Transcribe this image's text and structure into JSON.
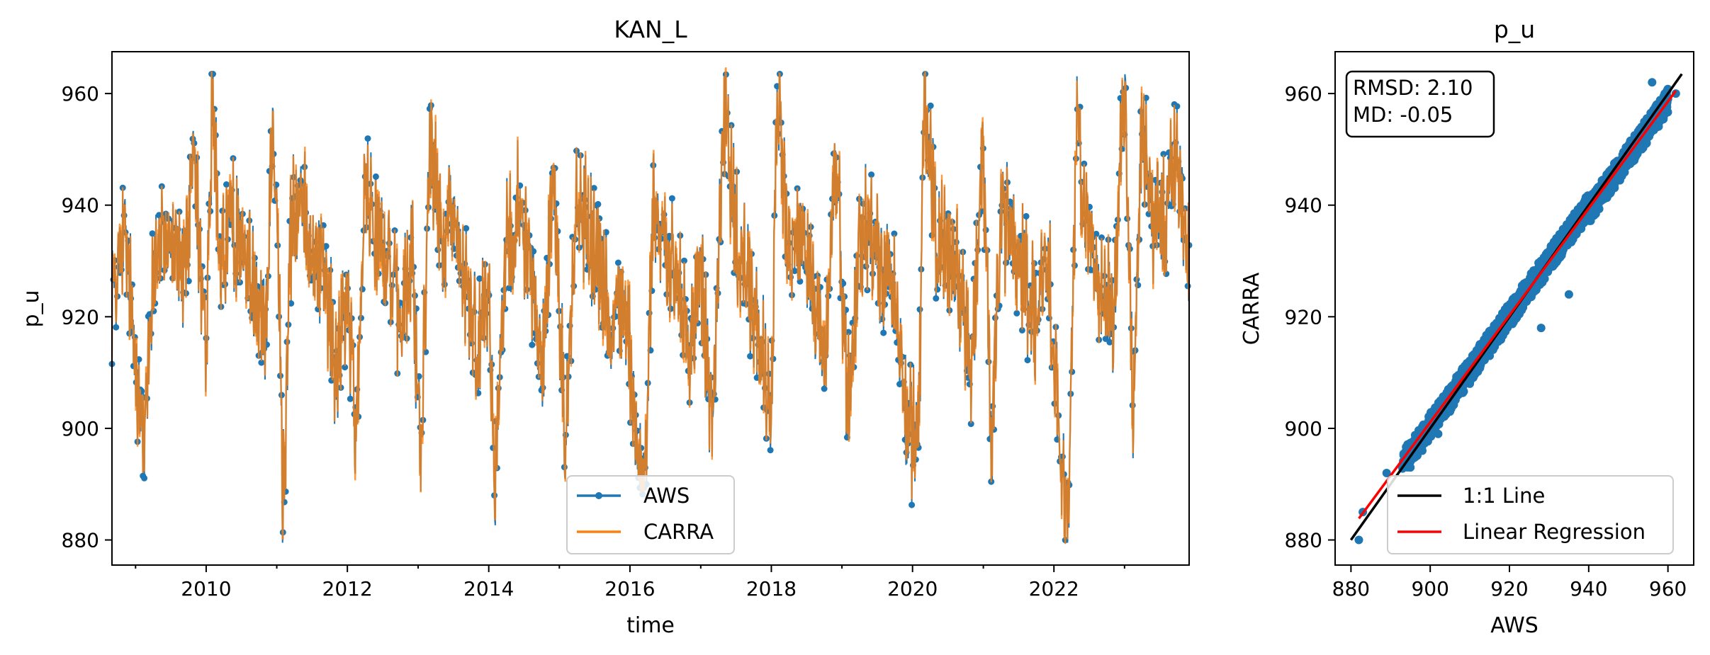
{
  "chart_data": [
    {
      "type": "line",
      "title": "KAN_L",
      "xlabel": "time",
      "ylabel": "p_u",
      "xlim": [
        "2008-09-01",
        "2023-12-01"
      ],
      "ylim": [
        875.5,
        967.5
      ],
      "xticks": [
        "2010",
        "2012",
        "2014",
        "2016",
        "2018",
        "2020",
        "2022"
      ],
      "yticks": [
        "880",
        "900",
        "920",
        "940",
        "960"
      ],
      "grid": false,
      "legend_position": "bottom-center",
      "series": [
        {
          "name": "AWS",
          "color": "#1f77b4",
          "marker": "circle"
        },
        {
          "name": "CARRA",
          "color": "#ff7f0e"
        }
      ],
      "points": [
        {
          "t": "2008-09-01",
          "v": 925
        },
        {
          "t": "2008-11-01",
          "v": 935
        },
        {
          "t": "2009-01-01",
          "v": 913
        },
        {
          "t": "2009-02-15",
          "v": 897
        },
        {
          "t": "2009-04-01",
          "v": 928
        },
        {
          "t": "2009-06-01",
          "v": 935
        },
        {
          "t": "2009-09-01",
          "v": 928
        },
        {
          "t": "2009-11-01",
          "v": 945
        },
        {
          "t": "2010-01-01",
          "v": 912
        },
        {
          "t": "2010-02-01",
          "v": 958
        },
        {
          "t": "2010-03-15",
          "v": 930
        },
        {
          "t": "2010-05-01",
          "v": 937
        },
        {
          "t": "2010-07-01",
          "v": 933
        },
        {
          "t": "2010-09-01",
          "v": 927
        },
        {
          "t": "2010-11-01",
          "v": 917
        },
        {
          "t": "2010-12-15",
          "v": 959
        },
        {
          "t": "2011-01-15",
          "v": 925
        },
        {
          "t": "2011-02-01",
          "v": 882
        },
        {
          "t": "2011-03-15",
          "v": 935
        },
        {
          "t": "2011-05-01",
          "v": 942
        },
        {
          "t": "2011-07-01",
          "v": 933
        },
        {
          "t": "2011-09-01",
          "v": 928
        },
        {
          "t": "2011-11-01",
          "v": 910
        },
        {
          "t": "2012-01-01",
          "v": 925
        },
        {
          "t": "2012-02-15",
          "v": 896
        },
        {
          "t": "2012-04-01",
          "v": 946
        },
        {
          "t": "2012-06-01",
          "v": 936
        },
        {
          "t": "2012-08-01",
          "v": 930
        },
        {
          "t": "2012-10-01",
          "v": 918
        },
        {
          "t": "2012-12-01",
          "v": 930
        },
        {
          "t": "2013-01-15",
          "v": 894
        },
        {
          "t": "2013-03-01",
          "v": 953
        },
        {
          "t": "2013-05-01",
          "v": 935
        },
        {
          "t": "2013-07-01",
          "v": 938
        },
        {
          "t": "2013-09-01",
          "v": 925
        },
        {
          "t": "2013-11-01",
          "v": 913
        },
        {
          "t": "2014-01-01",
          "v": 928
        },
        {
          "t": "2014-02-01",
          "v": 890
        },
        {
          "t": "2014-04-01",
          "v": 935
        },
        {
          "t": "2014-06-01",
          "v": 940
        },
        {
          "t": "2014-08-01",
          "v": 930
        },
        {
          "t": "2014-10-01",
          "v": 910
        },
        {
          "t": "2014-12-01",
          "v": 945
        },
        {
          "t": "2015-02-01",
          "v": 898
        },
        {
          "t": "2015-04-01",
          "v": 942
        },
        {
          "t": "2015-06-01",
          "v": 935
        },
        {
          "t": "2015-08-01",
          "v": 930
        },
        {
          "t": "2015-10-01",
          "v": 915
        },
        {
          "t": "2015-12-01",
          "v": 925
        },
        {
          "t": "2016-02-01",
          "v": 899
        },
        {
          "t": "2016-03-15",
          "v": 891
        },
        {
          "t": "2016-05-01",
          "v": 940
        },
        {
          "t": "2016-07-01",
          "v": 932
        },
        {
          "t": "2016-09-01",
          "v": 925
        },
        {
          "t": "2016-11-01",
          "v": 912
        },
        {
          "t": "2017-01-01",
          "v": 930
        },
        {
          "t": "2017-03-01",
          "v": 898
        },
        {
          "t": "2017-05-01",
          "v": 957
        },
        {
          "t": "2017-07-01",
          "v": 935
        },
        {
          "t": "2017-09-01",
          "v": 927
        },
        {
          "t": "2017-11-01",
          "v": 915
        },
        {
          "t": "2018-01-01",
          "v": 902
        },
        {
          "t": "2018-02-01",
          "v": 961
        },
        {
          "t": "2018-04-01",
          "v": 930
        },
        {
          "t": "2018-06-01",
          "v": 935
        },
        {
          "t": "2018-08-01",
          "v": 928
        },
        {
          "t": "2018-10-01",
          "v": 912
        },
        {
          "t": "2018-12-01",
          "v": 950
        },
        {
          "t": "2019-02-01",
          "v": 903
        },
        {
          "t": "2019-04-01",
          "v": 933
        },
        {
          "t": "2019-06-01",
          "v": 937
        },
        {
          "t": "2019-08-01",
          "v": 929
        },
        {
          "t": "2019-10-01",
          "v": 925
        },
        {
          "t": "2019-12-01",
          "v": 900
        },
        {
          "t": "2020-02-01",
          "v": 898
        },
        {
          "t": "2020-03-01",
          "v": 962
        },
        {
          "t": "2020-05-01",
          "v": 935
        },
        {
          "t": "2020-07-01",
          "v": 932
        },
        {
          "t": "2020-09-01",
          "v": 925
        },
        {
          "t": "2020-11-01",
          "v": 910
        },
        {
          "t": "2021-01-01",
          "v": 950
        },
        {
          "t": "2021-02-15",
          "v": 898
        },
        {
          "t": "2021-04-01",
          "v": 940
        },
        {
          "t": "2021-06-01",
          "v": 933
        },
        {
          "t": "2021-08-01",
          "v": 928
        },
        {
          "t": "2021-10-01",
          "v": 918
        },
        {
          "t": "2021-12-01",
          "v": 930
        },
        {
          "t": "2022-02-01",
          "v": 896
        },
        {
          "t": "2022-03-15",
          "v": 883
        },
        {
          "t": "2022-05-01",
          "v": 955
        },
        {
          "t": "2022-07-01",
          "v": 932
        },
        {
          "t": "2022-09-01",
          "v": 928
        },
        {
          "t": "2022-11-01",
          "v": 920
        },
        {
          "t": "2023-01-01",
          "v": 963
        },
        {
          "t": "2023-02-15",
          "v": 900
        },
        {
          "t": "2023-04-01",
          "v": 957
        },
        {
          "t": "2023-06-01",
          "v": 935
        },
        {
          "t": "2023-08-01",
          "v": 940
        },
        {
          "t": "2023-10-01",
          "v": 952
        },
        {
          "t": "2023-12-01",
          "v": 925
        }
      ]
    },
    {
      "type": "scatter",
      "title": "p_u",
      "xlabel": "AWS",
      "ylabel": "CARRA",
      "xlim": [
        876,
        966.5
      ],
      "ylim": [
        875.5,
        967.5
      ],
      "xticks": [
        "880",
        "900",
        "920",
        "940",
        "960"
      ],
      "yticks": [
        "880",
        "900",
        "920",
        "940",
        "960"
      ],
      "grid": false,
      "legend_position": "bottom-right",
      "stats": {
        "rmsd": "RMSD: 2.10",
        "md": "MD: -0.05"
      },
      "series": [
        {
          "name": "1:1 Line",
          "color": "#000000",
          "slope": 1.0,
          "intercept": 0.0
        },
        {
          "name": "Linear Regression",
          "color": "#ff0000",
          "slope": 0.958,
          "intercept": 38.9
        }
      ],
      "scatter_color": "#1f77b4",
      "points": [
        [
          882,
          880
        ],
        [
          883,
          885
        ],
        [
          889,
          892
        ],
        [
          893,
          893
        ],
        [
          895,
          893
        ],
        [
          898,
          896
        ],
        [
          902,
          899
        ],
        [
          905,
          903
        ],
        [
          910,
          908
        ],
        [
          915,
          913
        ],
        [
          920,
          919
        ],
        [
          925,
          924
        ],
        [
          930,
          929
        ],
        [
          935,
          934
        ],
        [
          940,
          939
        ],
        [
          945,
          944
        ],
        [
          950,
          949
        ],
        [
          955,
          954
        ],
        [
          958,
          957
        ],
        [
          960,
          959
        ],
        [
          962,
          960
        ],
        [
          953,
          953
        ],
        [
          935,
          924
        ],
        [
          928,
          918
        ],
        [
          956,
          962
        ]
      ]
    }
  ]
}
